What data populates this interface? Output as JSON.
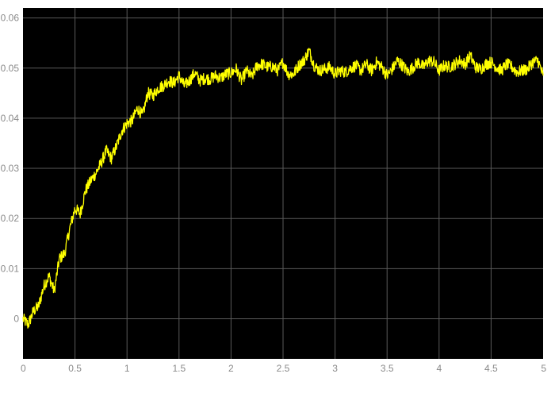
{
  "chart_data": {
    "type": "line",
    "title": "",
    "xlabel": "",
    "ylabel": "",
    "xlim": [
      0,
      5
    ],
    "ylim": [
      -0.008,
      0.062
    ],
    "grid": true,
    "x_ticks": [
      0,
      0.5,
      1,
      1.5,
      2,
      2.5,
      3,
      3.5,
      4,
      4.5,
      5
    ],
    "x_tick_labels": [
      "0",
      "0.5",
      "1",
      "1.5",
      "2",
      "2.5",
      "3",
      "3.5",
      "4",
      "4.5",
      "5"
    ],
    "y_ticks": [
      0,
      0.01,
      0.02,
      0.03,
      0.04,
      0.05,
      0.06
    ],
    "y_tick_labels": [
      "0",
      "0.01",
      "0.02",
      "0.03",
      "0.04",
      "0.05",
      "0.06"
    ],
    "colors": {
      "background": "#000000",
      "grid": "#5a5a5a",
      "line": "#ffff00",
      "tick_text": "#8a8a8a",
      "page": "#ffffff"
    },
    "series": [
      {
        "x": [
          0,
          0.05,
          0.1,
          0.15,
          0.2,
          0.25,
          0.3,
          0.35,
          0.4,
          0.45,
          0.5,
          0.55,
          0.6,
          0.65,
          0.7,
          0.75,
          0.8,
          0.85,
          0.9,
          0.95,
          1.0,
          1.05,
          1.1,
          1.15,
          1.2,
          1.25,
          1.3,
          1.35,
          1.4,
          1.45,
          1.5,
          1.55,
          1.6,
          1.65,
          1.7,
          1.75,
          1.8,
          1.85,
          1.9,
          1.95,
          2.0,
          2.05,
          2.1,
          2.15,
          2.2,
          2.25,
          2.3,
          2.35,
          2.4,
          2.45,
          2.5,
          2.55,
          2.6,
          2.65,
          2.7,
          2.75,
          2.8,
          2.85,
          2.9,
          2.95,
          3.0,
          3.05,
          3.1,
          3.15,
          3.2,
          3.25,
          3.3,
          3.35,
          3.4,
          3.45,
          3.5,
          3.55,
          3.6,
          3.65,
          3.7,
          3.75,
          3.8,
          3.85,
          3.9,
          3.95,
          4.0,
          4.05,
          4.1,
          4.15,
          4.2,
          4.25,
          4.3,
          4.35,
          4.4,
          4.45,
          4.5,
          4.55,
          4.6,
          4.65,
          4.7,
          4.75,
          4.8,
          4.85,
          4.9,
          4.95,
          5.0
        ],
        "values": [
          0.0,
          -0.0012,
          0.0015,
          0.0025,
          0.0065,
          0.0085,
          0.0055,
          0.012,
          0.013,
          0.018,
          0.022,
          0.021,
          0.0255,
          0.0275,
          0.029,
          0.031,
          0.0335,
          0.032,
          0.0345,
          0.0375,
          0.039,
          0.0395,
          0.042,
          0.0405,
          0.045,
          0.0445,
          0.046,
          0.0465,
          0.0475,
          0.047,
          0.0485,
          0.0465,
          0.0475,
          0.049,
          0.0475,
          0.048,
          0.0478,
          0.0485,
          0.048,
          0.0488,
          0.049,
          0.0498,
          0.0475,
          0.0495,
          0.0482,
          0.0505,
          0.0508,
          0.0502,
          0.0503,
          0.0495,
          0.0512,
          0.0488,
          0.0488,
          0.0505,
          0.0515,
          0.0535,
          0.0505,
          0.0495,
          0.0498,
          0.0502,
          0.0488,
          0.0495,
          0.0492,
          0.05,
          0.0505,
          0.0495,
          0.0508,
          0.0495,
          0.0512,
          0.0502,
          0.0485,
          0.0498,
          0.0515,
          0.0505,
          0.0492,
          0.0502,
          0.0512,
          0.0502,
          0.0515,
          0.0512,
          0.0495,
          0.0505,
          0.0502,
          0.0508,
          0.0515,
          0.0508,
          0.0525,
          0.0502,
          0.0498,
          0.0508,
          0.0512,
          0.0502,
          0.0495,
          0.0508,
          0.0502,
          0.0492,
          0.0495,
          0.0498,
          0.0512,
          0.0515,
          0.0485
        ]
      }
    ]
  }
}
